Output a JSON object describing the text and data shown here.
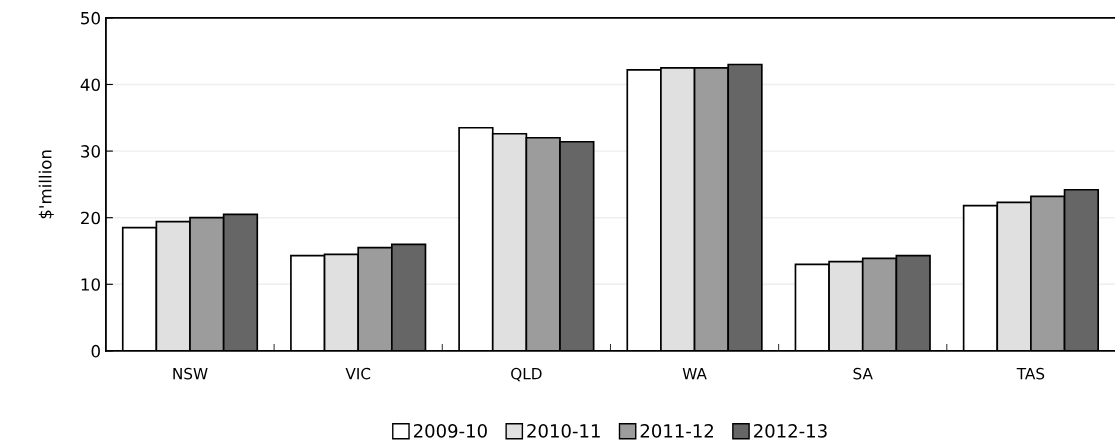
{
  "chart_data": {
    "type": "bar",
    "ylabel": "$'million",
    "categories": [
      "NSW",
      "VIC",
      "QLD",
      "WA",
      "SA",
      "TAS"
    ],
    "series": [
      {
        "name": "2009-10",
        "color": "#ffffff",
        "values": [
          18.5,
          14.3,
          33.5,
          42.2,
          13.0,
          21.8
        ]
      },
      {
        "name": "2010-11",
        "color": "#e0e0e0",
        "values": [
          19.4,
          14.5,
          32.6,
          42.5,
          13.4,
          22.3
        ]
      },
      {
        "name": "2011-12",
        "color": "#9c9c9c",
        "values": [
          20.0,
          15.5,
          32.0,
          42.5,
          13.9,
          23.2
        ]
      },
      {
        "name": "2012-13",
        "color": "#666666",
        "values": [
          20.5,
          16.0,
          31.4,
          43.0,
          14.3,
          24.2
        ]
      }
    ],
    "ylim": [
      0,
      50
    ],
    "yticks": [
      0,
      10,
      20,
      30,
      40,
      50
    ],
    "grid": "y",
    "legend": "bottom"
  }
}
